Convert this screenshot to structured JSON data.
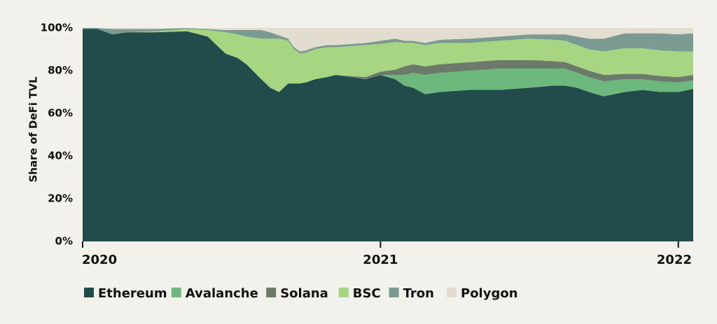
{
  "chart_data": {
    "type": "area",
    "stacked": true,
    "normalized": true,
    "title": "",
    "xlabel": "",
    "ylabel": "Share of DeFi TVL",
    "ylim": [
      0,
      100
    ],
    "yticks": [
      "0%",
      "20%",
      "40%",
      "60%",
      "80%",
      "100%"
    ],
    "xtick_labels": [
      {
        "label": "2020",
        "x": 2020.0
      },
      {
        "label": "2021",
        "x": 2021.0
      },
      {
        "label": "2022",
        "x": 2022.0
      }
    ],
    "xlim": [
      2020.0,
      2022.05
    ],
    "grid": false,
    "legend_position": "bottom-left",
    "x": [
      2020.0,
      2020.05,
      2020.1,
      2020.15,
      2020.25,
      2020.35,
      2020.42,
      2020.48,
      2020.52,
      2020.55,
      2020.6,
      2020.63,
      2020.66,
      2020.69,
      2020.71,
      2020.73,
      2020.75,
      2020.78,
      2020.82,
      2020.85,
      2020.9,
      2020.95,
      2021.0,
      2021.05,
      2021.08,
      2021.11,
      2021.15,
      2021.2,
      2021.3,
      2021.4,
      2021.5,
      2021.58,
      2021.62,
      2021.66,
      2021.7,
      2021.75,
      2021.82,
      2021.88,
      2021.94,
      2022.0,
      2022.05
    ],
    "series": [
      {
        "name": "Ethereum",
        "color": "#224b4b",
        "values": [
          99.5,
          99.5,
          97,
          98,
          98,
          98.5,
          96,
          88,
          86,
          83,
          76,
          72,
          70,
          74,
          74,
          74,
          74.5,
          76,
          77,
          78,
          77,
          76,
          78,
          76,
          73,
          72,
          69,
          70,
          71,
          71,
          72,
          73,
          73,
          72,
          70,
          68,
          70,
          71,
          70,
          70,
          71.5
        ]
      },
      {
        "name": "Avalanche",
        "color": "#6db87c",
        "values": [
          0,
          0,
          0,
          0,
          0,
          0,
          0,
          0,
          0,
          0,
          0,
          0,
          0,
          0,
          0,
          0,
          0,
          0,
          0,
          0,
          0,
          0,
          0,
          2,
          5,
          7,
          9,
          9,
          9,
          10,
          9,
          8,
          8,
          7,
          7,
          7,
          6,
          5,
          5,
          4.5,
          4
        ]
      },
      {
        "name": "Solana",
        "color": "#6b7a6a",
        "values": [
          0,
          0,
          0,
          0,
          0,
          0,
          0,
          0,
          0,
          0,
          0,
          0,
          0,
          0,
          0,
          0,
          0,
          0,
          0,
          0,
          0.5,
          1,
          1.5,
          2.5,
          4,
          4,
          4,
          4,
          4,
          4,
          4,
          3.5,
          3,
          3,
          3,
          3,
          2.5,
          2.5,
          2.5,
          2.5,
          2.5
        ]
      },
      {
        "name": "BSC",
        "color": "#a8d582",
        "values": [
          0,
          0,
          0,
          0,
          0.5,
          1,
          3,
          10,
          11,
          13,
          19,
          23,
          25,
          20,
          16,
          14,
          14,
          14,
          14,
          13,
          14,
          15,
          13,
          13,
          11,
          10,
          10,
          10,
          9,
          9,
          10,
          10,
          10,
          10,
          10,
          11,
          12,
          12,
          12,
          12,
          11
        ]
      },
      {
        "name": "Tron",
        "color": "#7a9a92",
        "values": [
          0.5,
          0.5,
          2.5,
          1.5,
          1,
          0.5,
          0.5,
          1,
          2,
          3,
          4,
          3,
          1.5,
          1,
          1,
          1,
          1,
          1,
          1,
          1,
          1,
          1,
          1.5,
          1.5,
          1,
          1,
          1,
          1.5,
          2,
          2,
          2,
          2.5,
          3,
          4,
          5,
          6,
          7,
          7,
          8,
          8,
          8.5
        ]
      },
      {
        "name": "Polygon",
        "color": "#e3ddcf",
        "values": [
          0,
          0,
          0.5,
          0.5,
          0.5,
          0,
          0.5,
          1,
          1,
          1,
          1,
          2,
          3.5,
          5,
          9,
          11,
          10.5,
          9,
          8,
          8,
          7.5,
          7,
          6,
          5,
          6,
          6,
          7,
          5.5,
          5,
          4,
          3,
          3,
          3,
          4,
          5,
          5,
          2.5,
          2.5,
          2.5,
          3,
          2.5
        ]
      }
    ]
  }
}
